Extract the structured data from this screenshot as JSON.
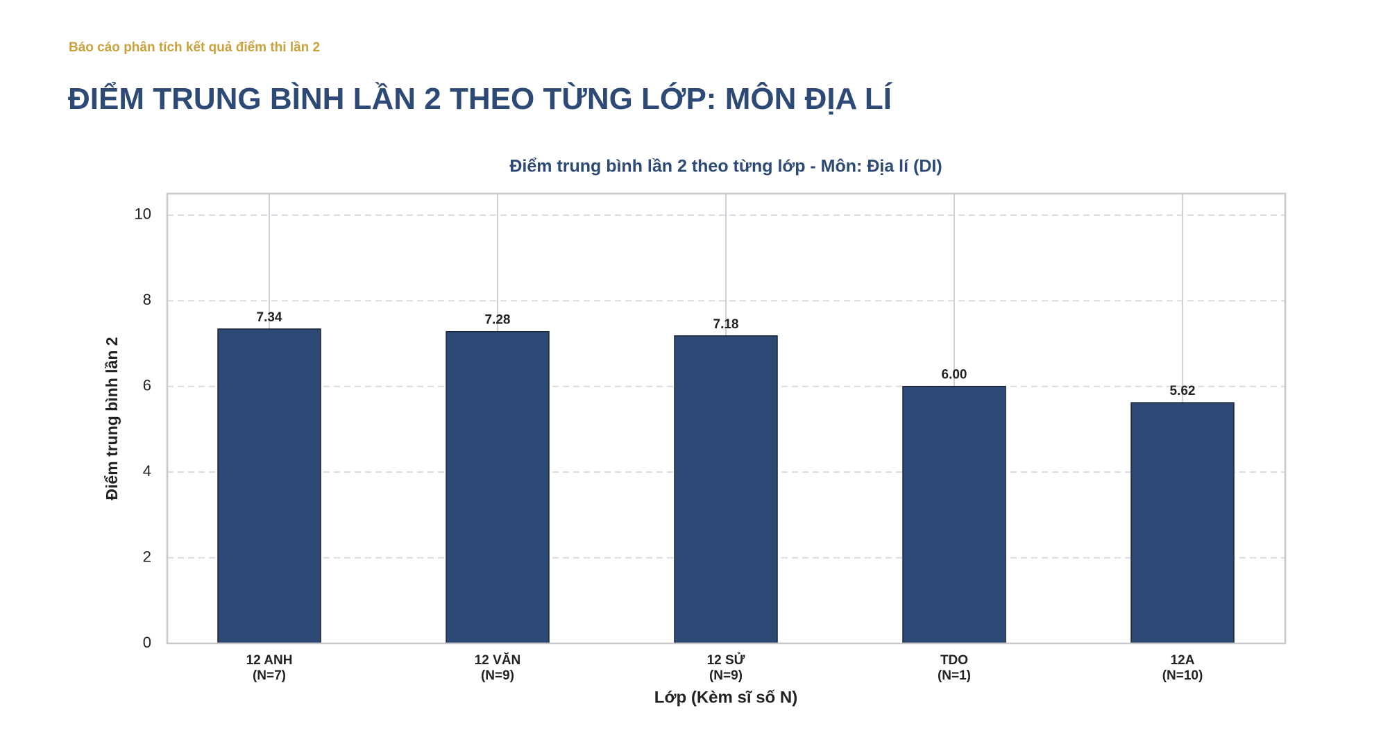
{
  "header": {
    "kicker": "Báo cáo phân tích kết quả điểm thi lần 2",
    "title": "ĐIỂM TRUNG BÌNH LẦN 2 THEO TỪNG LỚP: MÔN ĐỊA LÍ"
  },
  "chart_data": {
    "type": "bar",
    "title": "Điểm trung bình lần 2 theo từng lớp - Môn: Địa lí (DI)",
    "x_label": "Lớp (Kèm sĩ số N)",
    "y_label": "Điểm trung bình lần 2",
    "categories": [
      "12 ANH\n(N=7)",
      "12 VĂN\n(N=9)",
      "12 SỬ\n(N=9)",
      "TDO\n(N=1)",
      "12A\n(N=10)"
    ],
    "values": [
      7.34,
      7.28,
      7.18,
      6,
      5.62
    ],
    "value_labels": [
      "7.34",
      "7.28",
      "7.18",
      "6.00",
      "5.62"
    ],
    "color": "#2c4a75",
    "ylim": [
      0,
      10.5
    ],
    "yticks": [
      0,
      2,
      4,
      6,
      8,
      10
    ],
    "grid": true
  }
}
